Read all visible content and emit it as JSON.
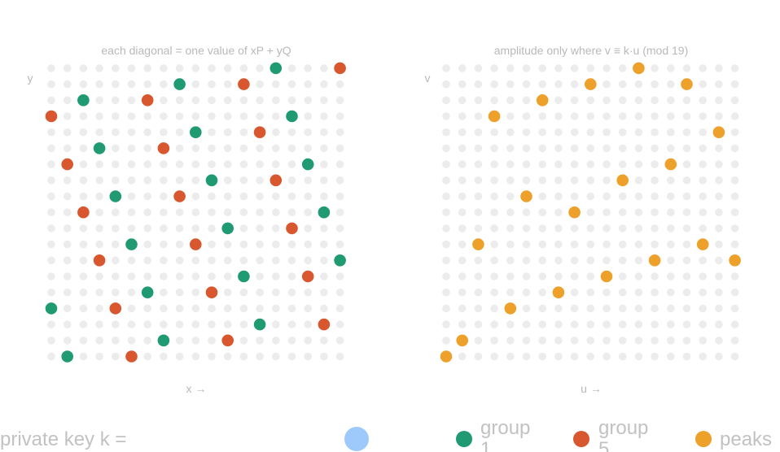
{
  "colors": {
    "grid": "#ececec",
    "group_1": "#1f9a72",
    "group_5": "#d8572f",
    "peaks": "#eda02a",
    "key_swatch": "#9ec9fb",
    "text": "#b9b9b9"
  },
  "left_panel": {
    "title": "each diagonal = one value of xP + yQ",
    "x_label": "x →",
    "y_label": "y",
    "grid_size": 19,
    "group_1_points": [
      [
        14,
        18
      ],
      [
        8,
        17
      ],
      [
        2,
        16
      ],
      [
        15,
        15
      ],
      [
        9,
        14
      ],
      [
        3,
        13
      ],
      [
        16,
        12
      ],
      [
        10,
        11
      ],
      [
        4,
        10
      ],
      [
        17,
        9
      ],
      [
        11,
        8
      ],
      [
        5,
        7
      ],
      [
        18,
        6
      ],
      [
        12,
        5
      ],
      [
        6,
        4
      ],
      [
        0,
        3
      ],
      [
        13,
        2
      ],
      [
        7,
        1
      ],
      [
        1,
        0
      ]
    ],
    "group_5_points": [
      [
        18,
        18
      ],
      [
        12,
        17
      ],
      [
        6,
        16
      ],
      [
        0,
        15
      ],
      [
        13,
        14
      ],
      [
        7,
        13
      ],
      [
        1,
        12
      ],
      [
        14,
        11
      ],
      [
        8,
        10
      ],
      [
        2,
        9
      ],
      [
        15,
        8
      ],
      [
        9,
        7
      ],
      [
        3,
        6
      ],
      [
        16,
        5
      ],
      [
        10,
        4
      ],
      [
        4,
        3
      ],
      [
        17,
        2
      ],
      [
        11,
        1
      ],
      [
        5,
        0
      ]
    ]
  },
  "right_panel": {
    "title": "amplitude only where v ≡ k·u (mod 19)",
    "x_label": "u →",
    "y_label": "v",
    "grid_size": 19,
    "peak_points": [
      [
        0,
        0
      ],
      [
        1,
        1
      ],
      [
        2,
        7
      ],
      [
        3,
        15
      ],
      [
        4,
        3
      ],
      [
        5,
        10
      ],
      [
        6,
        16
      ],
      [
        7,
        4
      ],
      [
        8,
        9
      ],
      [
        9,
        17
      ],
      [
        10,
        5
      ],
      [
        11,
        11
      ],
      [
        12,
        18
      ],
      [
        13,
        6
      ],
      [
        14,
        12
      ],
      [
        15,
        17
      ],
      [
        16,
        7
      ],
      [
        17,
        14
      ],
      [
        18,
        6
      ]
    ]
  },
  "legend": {
    "private_key_label": "private key k =",
    "group_1_label": "group 1",
    "group_5_label": "group 5",
    "peaks_label": "peaks"
  }
}
